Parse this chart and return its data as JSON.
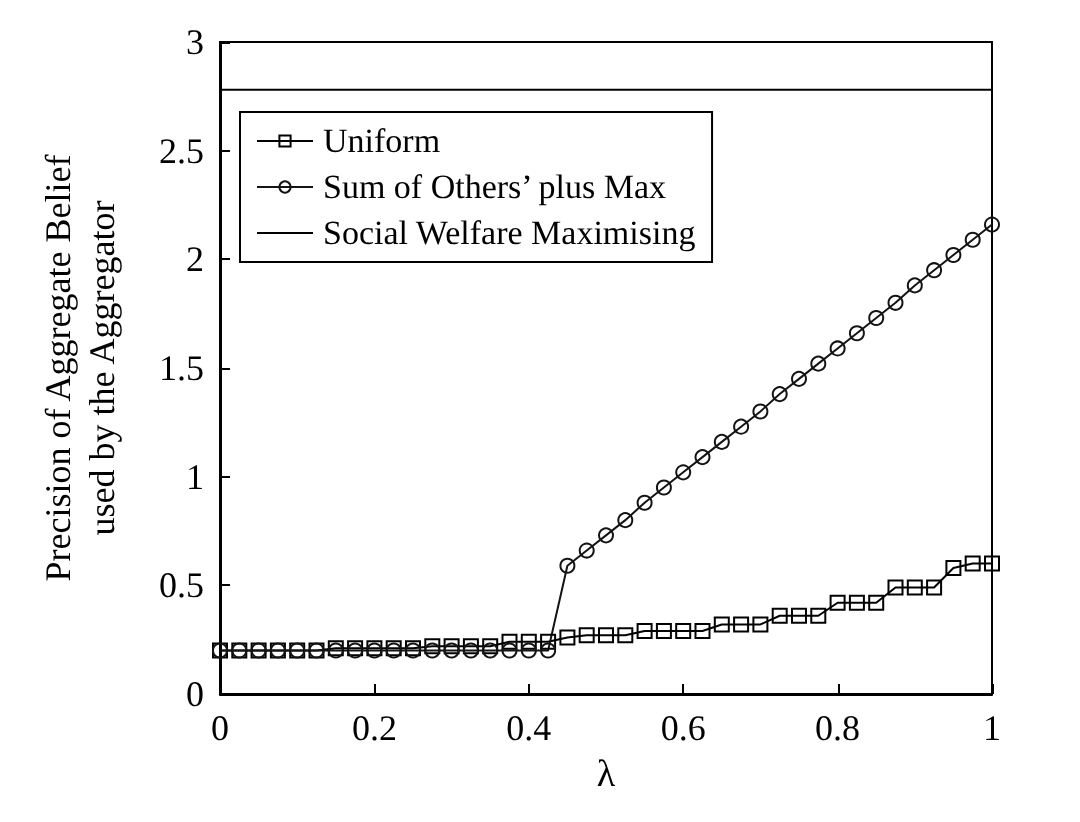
{
  "chart_data": {
    "type": "line",
    "xlabel": "λ",
    "ylabel": "Precision of Aggregate Belief\nused by the Aggregator",
    "xlim": [
      0,
      1
    ],
    "ylim": [
      0,
      3
    ],
    "xticks": [
      0,
      0.2,
      0.4,
      0.6,
      0.8,
      1
    ],
    "yticks": [
      0,
      0.5,
      1,
      1.5,
      2,
      2.5,
      3
    ],
    "grid": false,
    "legend": "top left",
    "x": [
      0,
      0.025,
      0.05,
      0.075,
      0.1,
      0.125,
      0.15,
      0.175,
      0.2,
      0.225,
      0.25,
      0.275,
      0.3,
      0.325,
      0.35,
      0.375,
      0.4,
      0.425,
      0.45,
      0.475,
      0.5,
      0.525,
      0.55,
      0.575,
      0.6,
      0.625,
      0.65,
      0.675,
      0.7,
      0.725,
      0.75,
      0.775,
      0.8,
      0.825,
      0.85,
      0.875,
      0.9,
      0.925,
      0.95,
      0.975,
      1
    ],
    "series": [
      {
        "name": "Uniform",
        "color": "#000000",
        "marker": "square",
        "values": [
          0.2,
          0.2,
          0.2,
          0.2,
          0.2,
          0.2,
          0.21,
          0.21,
          0.21,
          0.21,
          0.21,
          0.22,
          0.22,
          0.22,
          0.22,
          0.24,
          0.24,
          0.24,
          0.26,
          0.27,
          0.27,
          0.27,
          0.29,
          0.29,
          0.29,
          0.29,
          0.32,
          0.32,
          0.32,
          0.36,
          0.36,
          0.36,
          0.42,
          0.42,
          0.42,
          0.49,
          0.49,
          0.49,
          0.58,
          0.6,
          0.6
        ]
      },
      {
        "name": "Sum of Others’ plus Max",
        "color": "#141414",
        "marker": "circle",
        "values": [
          0.2,
          0.2,
          0.2,
          0.2,
          0.2,
          0.2,
          0.2,
          0.2,
          0.2,
          0.2,
          0.2,
          0.2,
          0.2,
          0.2,
          0.2,
          0.2,
          0.2,
          0.2,
          0.59,
          0.66,
          0.73,
          0.8,
          0.88,
          0.95,
          1.02,
          1.09,
          1.16,
          1.23,
          1.3,
          1.38,
          1.45,
          1.52,
          1.59,
          1.66,
          1.73,
          1.8,
          1.88,
          1.95,
          2.02,
          2.09,
          2.16
        ]
      },
      {
        "name": "Social Welfare Maximising",
        "color": "#000000",
        "marker": "none",
        "x": [
          0,
          1
        ],
        "values": [
          2.78,
          2.78
        ]
      }
    ]
  }
}
